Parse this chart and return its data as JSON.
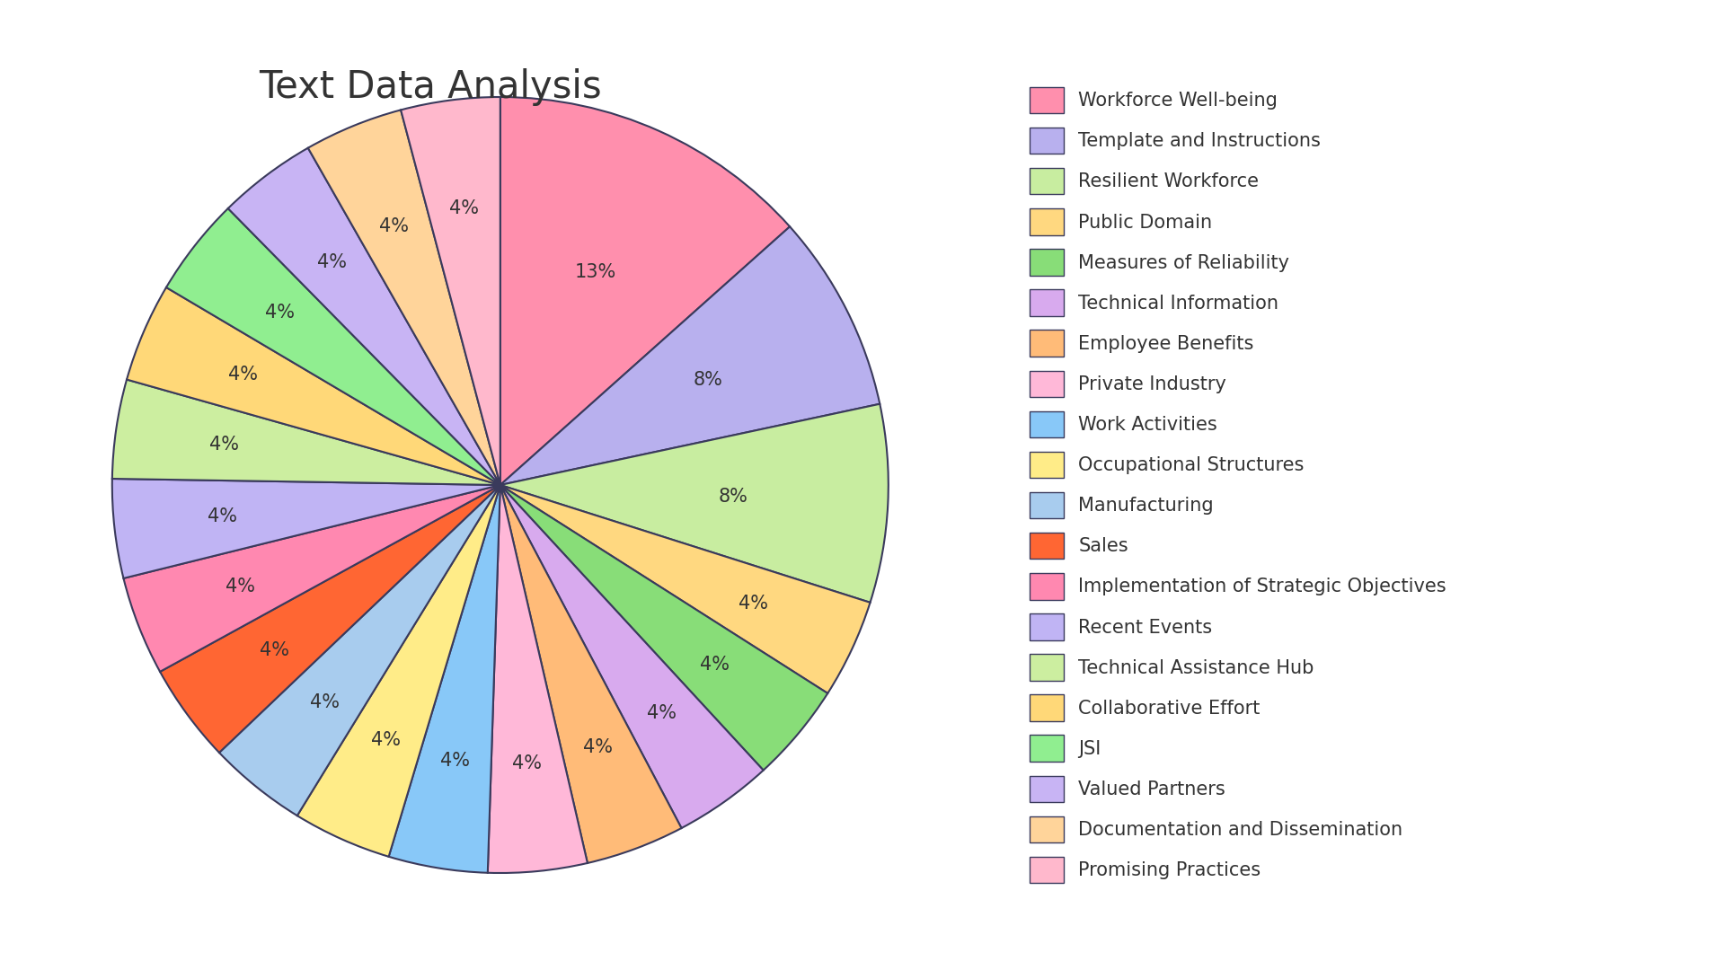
{
  "title": "Text Data Analysis",
  "values": [
    13,
    8,
    8,
    4,
    4,
    4,
    4,
    4,
    4,
    4,
    4,
    4,
    4,
    4,
    4,
    4,
    4,
    4,
    4,
    4
  ],
  "pct_labels": [
    "13%",
    "8%",
    "8%",
    "4%",
    "4%",
    "4%",
    "4%",
    "4%",
    "4%",
    "4%",
    "4%",
    "4%",
    "4%",
    "4%",
    "4%",
    "4%",
    "4%",
    "4%",
    "4%",
    "4%"
  ],
  "colors": [
    "#FF8FAD",
    "#B8B0EE",
    "#C8EDA0",
    "#FFD880",
    "#88DD78",
    "#D8AAEE",
    "#FFBB78",
    "#FFB8D8",
    "#88C8F8",
    "#FFEC88",
    "#A8CCEE",
    "#FF6633",
    "#FF88B0",
    "#C0B4F4",
    "#CCEEA0",
    "#FFD878",
    "#90EE90",
    "#C8B4F4",
    "#FFD49A",
    "#FFB8CC"
  ],
  "legend_labels": [
    "Workforce Well-being",
    "Template and Instructions",
    "Resilient Workforce",
    "Public Domain",
    "Measures of Reliability",
    "Technical Information",
    "Employee Benefits",
    "Private Industry",
    "Work Activities",
    "Occupational Structures",
    "Manufacturing",
    "Sales",
    "Implementation of Strategic Objectives",
    "Recent Events",
    "Technical Assistance Hub",
    "Collaborative Effort",
    "JSI",
    "Valued Partners",
    "Documentation and Dissemination",
    "Promising Practices"
  ],
  "background_color": "#FFFFFF",
  "text_color": "#333333",
  "edge_color": "#3A3A5C",
  "title_fontsize": 30,
  "label_fontsize": 15,
  "legend_fontsize": 15,
  "startangle": 90
}
